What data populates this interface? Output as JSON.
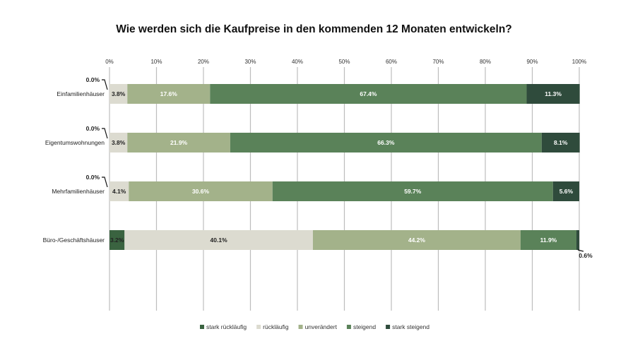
{
  "chart_data": {
    "type": "bar",
    "orientation": "horizontal",
    "stacked": true,
    "title": "Wie werden sich die Kaufpreise in den kommenden 12 Monaten entwickeln?",
    "categories": [
      "Einfamilienhäuser",
      "Eigentumswohnungen",
      "Mehrfamilienhäuser",
      "Büro-/Geschäftshäuser"
    ],
    "series": [
      {
        "name": "stark rückläufig",
        "color": "#3a6340",
        "values": [
          0.0,
          0.0,
          0.0,
          3.2
        ]
      },
      {
        "name": "rückläufig",
        "color": "#dcdbd0",
        "values": [
          3.8,
          3.8,
          4.1,
          40.1
        ]
      },
      {
        "name": "unverändert",
        "color": "#a3b28a",
        "values": [
          17.6,
          21.9,
          30.6,
          44.2
        ]
      },
      {
        "name": "steigend",
        "color": "#5a8259",
        "values": [
          67.4,
          66.3,
          59.7,
          11.9
        ]
      },
      {
        "name": "stark steigend",
        "color": "#2f4b3c",
        "values": [
          11.3,
          8.1,
          5.6,
          0.6
        ]
      }
    ],
    "x_ticks": [
      "0%",
      "10%",
      "20%",
      "30%",
      "40%",
      "50%",
      "60%",
      "70%",
      "80%",
      "90%",
      "100%"
    ],
    "xlim": [
      0,
      100
    ],
    "x_axis_position": "top",
    "grid": true,
    "legend_position": "bottom",
    "data_label_format": "0.0%"
  }
}
